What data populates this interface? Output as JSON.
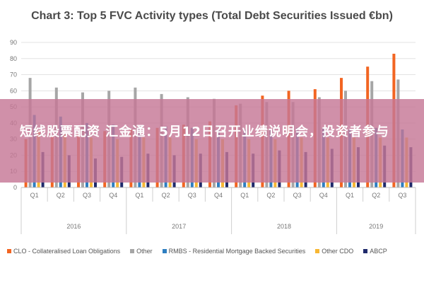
{
  "chart_data": {
    "type": "bar",
    "title": "Chart 3: Top 5 FVC Activity types (Total Debt Securities Issued €bn)",
    "ylim": [
      0,
      90
    ],
    "yticks": [
      0,
      10,
      20,
      30,
      40,
      50,
      60,
      70,
      80,
      90
    ],
    "grid": true,
    "legend_position": "bottom",
    "categories": [
      "Q1",
      "Q2",
      "Q3",
      "Q4",
      "Q1",
      "Q2",
      "Q3",
      "Q4",
      "Q1",
      "Q2",
      "Q3",
      "Q4",
      "Q1",
      "Q2",
      "Q3"
    ],
    "years": [
      {
        "label": "2016",
        "span": 4
      },
      {
        "label": "2017",
        "span": 4
      },
      {
        "label": "2018",
        "span": 4
      },
      {
        "label": "2019",
        "span": 3
      }
    ],
    "series": [
      {
        "name": "CLO - Collateralised Loan Obligations",
        "color": "#f26522",
        "values": [
          30,
          32,
          33,
          35,
          36,
          37,
          39,
          41,
          51,
          57,
          60,
          61,
          68,
          75,
          83
        ]
      },
      {
        "name": "Other",
        "color": "#a6a6a6",
        "values": [
          68,
          62,
          59,
          60,
          62,
          58,
          56,
          55,
          52,
          53,
          53,
          56,
          60,
          66,
          67
        ]
      },
      {
        "name": "RMBS - Residential Mortgage Backed Securities",
        "color": "#2e7fc1",
        "values": [
          45,
          44,
          40,
          39,
          38,
          38,
          37,
          36,
          36,
          36,
          37,
          37,
          36,
          37,
          36
        ]
      },
      {
        "name": "Other CDO",
        "color": "#f7b733",
        "values": [
          35,
          33,
          31,
          30,
          31,
          31,
          30,
          30,
          30,
          30,
          31,
          31,
          31,
          31,
          31
        ]
      },
      {
        "name": "ABCP",
        "color": "#1f2a6b",
        "values": [
          22,
          20,
          18,
          19,
          21,
          20,
          21,
          22,
          21,
          23,
          22,
          24,
          25,
          26,
          25
        ]
      }
    ]
  },
  "banner": {
    "text": "短线股票配资 汇金通：5月12日召开业绩说明会，投资者参与"
  }
}
